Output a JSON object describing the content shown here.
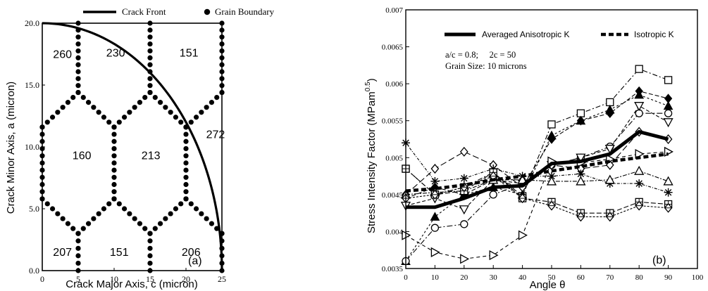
{
  "chart_data": [
    {
      "type": "scatter",
      "panel_label": "(a)",
      "xlabel": "Crack Major Axis, c (micron)",
      "ylabel": "Crack Minor Axis, a (micron)",
      "xlim": [
        0,
        25
      ],
      "ylim": [
        0,
        20
      ],
      "xticks": [
        "0",
        "5",
        "10",
        "15",
        "20",
        "25"
      ],
      "yticks": [
        "0.0",
        "5.0",
        "10.0",
        "15.0",
        "20.0"
      ],
      "legend": [
        {
          "label": "Crack Front",
          "marker": "line"
        },
        {
          "label": "Grain Boundary",
          "marker": "dot"
        }
      ],
      "crack_front": {
        "shape": "quarter-ellipse",
        "c": 25,
        "a": 20
      },
      "grain_boundaries": [
        [
          [
            5,
            20
          ],
          [
            5,
            14.4
          ]
        ],
        [
          [
            15,
            20
          ],
          [
            15,
            14.4
          ]
        ],
        [
          [
            25,
            20
          ],
          [
            25,
            14.4
          ]
        ],
        [
          [
            5,
            14.4
          ],
          [
            0,
            11.6
          ]
        ],
        [
          [
            5,
            14.4
          ],
          [
            10,
            11.6
          ]
        ],
        [
          [
            15,
            14.4
          ],
          [
            10,
            11.6
          ]
        ],
        [
          [
            15,
            14.4
          ],
          [
            20,
            11.6
          ]
        ],
        [
          [
            25,
            14.4
          ],
          [
            20,
            11.6
          ]
        ],
        [
          [
            0,
            11.6
          ],
          [
            0,
            5.8
          ]
        ],
        [
          [
            10,
            11.6
          ],
          [
            10,
            5.8
          ]
        ],
        [
          [
            20,
            11.6
          ],
          [
            20,
            5.8
          ]
        ],
        [
          [
            0,
            5.8
          ],
          [
            5,
            3
          ]
        ],
        [
          [
            10,
            5.8
          ],
          [
            5,
            3
          ]
        ],
        [
          [
            10,
            5.8
          ],
          [
            15,
            3
          ]
        ],
        [
          [
            20,
            5.8
          ],
          [
            15,
            3
          ]
        ],
        [
          [
            20,
            5.8
          ],
          [
            25,
            3
          ]
        ],
        [
          [
            5,
            3
          ],
          [
            5,
            0
          ]
        ],
        [
          [
            15,
            3
          ],
          [
            15,
            0
          ]
        ],
        [
          [
            25,
            3
          ],
          [
            25,
            0
          ]
        ]
      ],
      "grain_labels": [
        {
          "text": "260",
          "x": 1.5,
          "y": 17.2
        },
        {
          "text": "230",
          "x": 8.9,
          "y": 17.3
        },
        {
          "text": "151",
          "x": 19.1,
          "y": 17.3
        },
        {
          "text": "272",
          "x": 22.8,
          "y": 10.7
        },
        {
          "text": "160",
          "x": 4.2,
          "y": 9.0
        },
        {
          "text": "213",
          "x": 13.8,
          "y": 9.0
        },
        {
          "text": "207",
          "x": 1.5,
          "y": 1.2
        },
        {
          "text": "151",
          "x": 9.4,
          "y": 1.2
        },
        {
          "text": "206",
          "x": 19.4,
          "y": 1.2
        }
      ]
    },
    {
      "type": "line",
      "panel_label": "(b)",
      "xlabel": "Angle θ",
      "ylabel": "Stress Intensity Factor (MPam",
      "ylabel_sup": "0.5",
      "ylabel_close": ")",
      "xlim": [
        0,
        100
      ],
      "ylim": [
        0.0035,
        0.007
      ],
      "xticks": [
        "0",
        "10",
        "20",
        "30",
        "40",
        "50",
        "60",
        "70",
        "80",
        "90",
        "100"
      ],
      "yticks": [
        "0.0035",
        "0.004",
        "0.0045",
        "0.005",
        "0.0055",
        "0.006",
        "0.0065",
        "0.007"
      ],
      "annotations": [
        "a/c = 0.8;     2c = 50",
        "Grain Size:  10 microns"
      ],
      "x": [
        0,
        10,
        20,
        30,
        40,
        50,
        60,
        70,
        80,
        90
      ],
      "series": [
        {
          "name": "Averaged Anisotropic K",
          "style": "thick-solid",
          "values": [
            0.00433,
            0.00433,
            0.00445,
            0.0046,
            0.00462,
            0.00492,
            0.00495,
            0.00505,
            0.00535,
            0.00525
          ]
        },
        {
          "name": "Isotropic K",
          "style": "thick-dashed",
          "values": [
            0.00455,
            0.00458,
            0.00463,
            0.0047,
            0.00475,
            0.00482,
            0.00488,
            0.00495,
            0.005,
            0.00505
          ]
        },
        {
          "style": "thin-dashed",
          "marker": "square",
          "values": [
            0.00485,
            0.0045,
            0.0046,
            0.0048,
            0.00448,
            0.00545,
            0.0056,
            0.00575,
            0.0062,
            0.00605
          ]
        },
        {
          "style": "thin-dashed",
          "marker": "diamond-filled",
          "values": [
            0.00445,
            0.0046,
            0.0045,
            0.0047,
            0.0046,
            0.00525,
            0.0055,
            0.0056,
            0.0059,
            0.0058
          ]
        },
        {
          "style": "thin-dashed",
          "marker": "triangle-up",
          "values": [
            0.0036,
            0.0042,
            0.0045,
            0.0046,
            0.0045,
            0.0053,
            0.0055,
            0.00565,
            0.00585,
            0.0057
          ]
        },
        {
          "style": "thin-dashed",
          "marker": "circle",
          "values": [
            0.0036,
            0.00405,
            0.0041,
            0.0045,
            0.00465,
            0.0049,
            0.005,
            0.00515,
            0.0056,
            0.0056
          ]
        },
        {
          "style": "thin-dashed",
          "marker": "triangle-down",
          "values": [
            0.00435,
            0.00445,
            0.0043,
            0.0047,
            0.00465,
            0.0049,
            0.005,
            0.00512,
            0.0057,
            0.00548
          ]
        },
        {
          "style": "thin-dashed",
          "marker": "diamond-open",
          "values": [
            0.0045,
            0.00485,
            0.00508,
            0.0049,
            0.0046,
            0.0049,
            0.00485,
            0.0049,
            0.00535,
            0.00525
          ]
        },
        {
          "style": "thin-dashed",
          "marker": "asterisk",
          "values": [
            0.0052,
            0.00468,
            0.00472,
            0.00485,
            0.00475,
            0.00475,
            0.00478,
            0.00465,
            0.00465,
            0.00453
          ]
        },
        {
          "style": "thin-dashed",
          "marker": "triangle-up-open",
          "values": [
            0.0045,
            0.00453,
            0.00455,
            0.0047,
            0.0047,
            0.00468,
            0.00468,
            0.0047,
            0.00482,
            0.00468
          ]
        },
        {
          "style": "thin-dashed",
          "marker": "triangle-right",
          "values": [
            0.00395,
            0.00372,
            0.00363,
            0.00368,
            0.00395,
            0.00495,
            0.00493,
            0.00498,
            0.00505,
            0.00508
          ]
        },
        {
          "style": "thin-dashed",
          "marker": "square-crossed",
          "values": [
            0.00485,
            0.0045,
            0.00455,
            0.0048,
            0.00445,
            0.0044,
            0.00425,
            0.00425,
            0.0044,
            0.00437
          ]
        },
        {
          "style": "thin-dashed",
          "marker": "diamond-crossed",
          "values": [
            0.00445,
            0.0045,
            0.0046,
            0.00475,
            0.00445,
            0.00435,
            0.0042,
            0.0042,
            0.00435,
            0.00432
          ]
        }
      ]
    }
  ]
}
